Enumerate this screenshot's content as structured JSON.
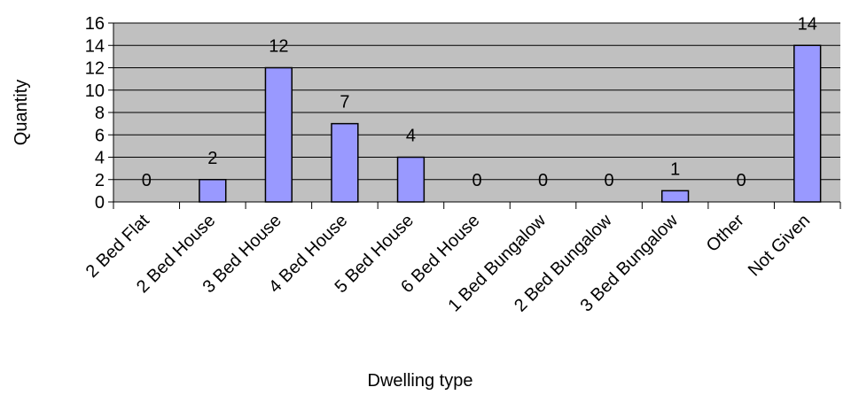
{
  "chart_data": {
    "type": "bar",
    "title": "",
    "xlabel": "Dwelling type",
    "ylabel": "Quantity",
    "categories": [
      "2 Bed Flat",
      "2 Bed House",
      "3 Bed House",
      "4 Bed House",
      "5 Bed House",
      "6 Bed House",
      "1 Bed Bungalow",
      "2 Bed Bungalow",
      "3 Bed Bungalow",
      "Other",
      "Not Given"
    ],
    "values": [
      0,
      2,
      12,
      7,
      4,
      0,
      0,
      0,
      1,
      0,
      14
    ],
    "ylim": [
      0,
      16
    ],
    "yticks": [
      0,
      2,
      4,
      6,
      8,
      10,
      12,
      14,
      16
    ],
    "grid": true,
    "legend": "none",
    "colors": {
      "bar_fill": "#9999ff",
      "bar_stroke": "#000000",
      "plot_background": "#c0c0c0",
      "gridline": "#000000"
    }
  }
}
